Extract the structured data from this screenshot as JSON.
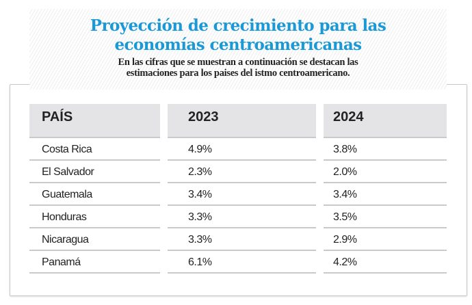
{
  "header": {
    "title_line1": "Proyección de crecimiento para las",
    "title_line2": "economías centroamericanas",
    "subtitle_line1": "En las cifras que se muestran a continuación se destacan las",
    "subtitle_line2": "estimaciones para los paises del istmo centroamericano."
  },
  "table": {
    "columns": [
      "PAÍS",
      "2023",
      "2024"
    ],
    "rows": [
      [
        "Costa Rica",
        "4.9%",
        "3.8%"
      ],
      [
        "El Salvador",
        "2.3%",
        "2.0%"
      ],
      [
        "Guatemala",
        "3.4%",
        "3.4%"
      ],
      [
        "Honduras",
        "3.3%",
        "3.5%"
      ],
      [
        "Nicaragua",
        "3.3%",
        "2.9%"
      ],
      [
        "Panamá",
        "6.1%",
        "4.2%"
      ]
    ]
  },
  "colors": {
    "title": "#1b99d6",
    "header_bg": "#e4e4e7"
  }
}
